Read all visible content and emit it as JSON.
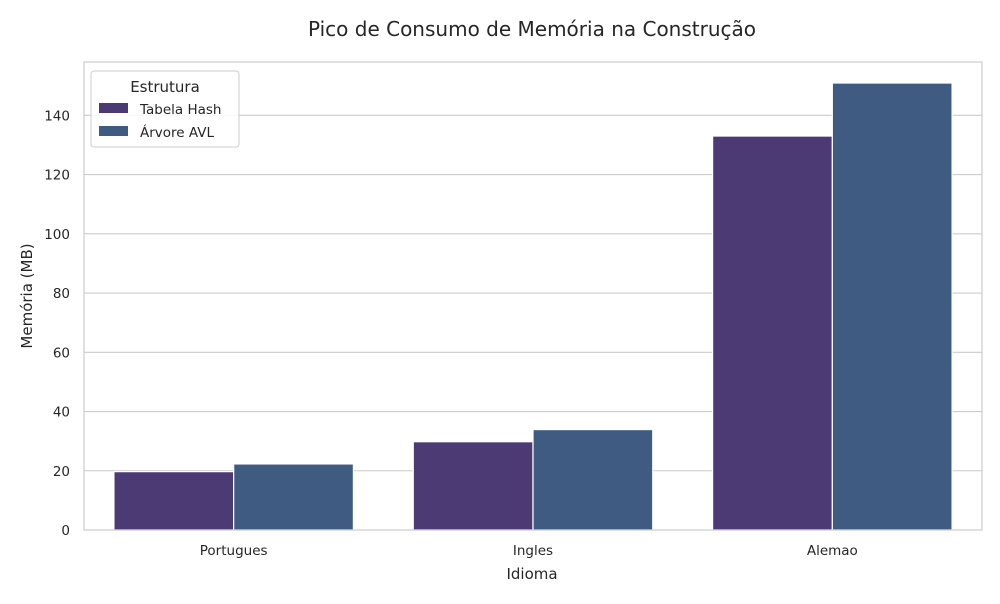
{
  "chart_data": {
    "type": "bar",
    "title": "Pico de Consumo de Memória na Construção",
    "xlabel": "Idioma",
    "ylabel": "Memória (MB)",
    "categories": [
      "Portugues",
      "Ingles",
      "Alemao"
    ],
    "series": [
      {
        "name": "Tabela Hash",
        "values": [
          19.7,
          29.8,
          133.0
        ],
        "color": "#4b3a74"
      },
      {
        "name": "Árvore AVL",
        "values": [
          22.3,
          33.9,
          150.9
        ],
        "color": "#3f5b82"
      }
    ],
    "ylim": [
      0,
      158
    ],
    "yticks": [
      0,
      20,
      40,
      60,
      80,
      100,
      120,
      140
    ],
    "grid": true,
    "legend": {
      "title": "Estrutura",
      "placement": "top-left"
    }
  }
}
